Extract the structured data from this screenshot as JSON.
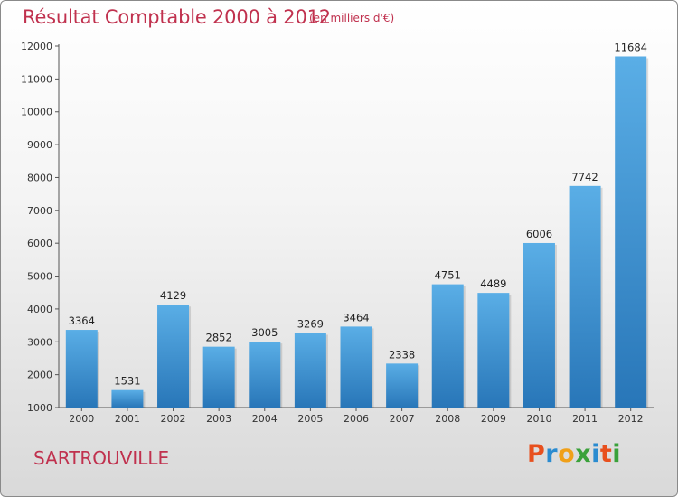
{
  "title": "Résultat Comptable 2000 à 2012",
  "subtitle": "(en milliers d'€)",
  "city": "SARTROUVILLE",
  "logo": {
    "text": "Proxiti",
    "letters": [
      {
        "ch": "P",
        "color": "#e8501e"
      },
      {
        "ch": "r",
        "color": "#2a8bd0"
      },
      {
        "ch": "o",
        "color": "#f0a019"
      },
      {
        "ch": "x",
        "color": "#3aa13a"
      },
      {
        "ch": "i",
        "color": "#2a8bd0"
      },
      {
        "ch": "t",
        "color": "#e8501e"
      },
      {
        "ch": "i",
        "color": "#3aa13a"
      }
    ]
  },
  "colors": {
    "title": "#c0314e",
    "bar_top": "#5aaee6",
    "bar_bottom": "#2876b8"
  },
  "chart_data": {
    "type": "bar",
    "title": "Résultat Comptable 2000 à 2012",
    "xlabel": "",
    "ylabel": "",
    "ylim": [
      1000,
      12000
    ],
    "yticks": [
      1000,
      2000,
      3000,
      4000,
      5000,
      6000,
      7000,
      8000,
      9000,
      10000,
      11000,
      12000
    ],
    "categories": [
      "2000",
      "2001",
      "2002",
      "2003",
      "2004",
      "2005",
      "2006",
      "2007",
      "2008",
      "2009",
      "2010",
      "2011",
      "2012"
    ],
    "values": [
      3364,
      1531,
      4129,
      2852,
      3005,
      3269,
      3464,
      2338,
      4751,
      4489,
      6006,
      7742,
      11684
    ],
    "grid": false
  }
}
